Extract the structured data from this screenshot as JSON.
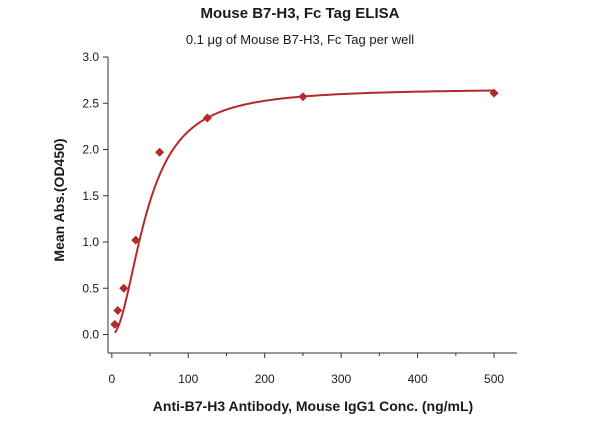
{
  "chart_data": {
    "type": "scatter",
    "title": "Mouse B7-H3, Fc Tag ELISA",
    "subtitle": "0.1 μg of Mouse B7-H3, Fc Tag per well",
    "xlabel": "Anti-B7-H3 Antibody, Mouse IgG1 Conc. (ng/mL)",
    "ylabel": "Mean Abs.(OD450)",
    "xlim": [
      -5,
      530
    ],
    "ylim": [
      -0.2,
      3.0
    ],
    "xticks": [
      0,
      100,
      200,
      300,
      400,
      500
    ],
    "yticks": [
      0.0,
      0.5,
      1.0,
      1.5,
      2.0,
      2.5,
      3.0
    ],
    "xtick_labels": [
      "0",
      "100",
      "200",
      "300",
      "400",
      "500"
    ],
    "ytick_labels": [
      "0.0",
      "0.5",
      "1.0",
      "1.5",
      "2.0",
      "2.5",
      "3.0"
    ],
    "grid": false,
    "color": "#b22a2a",
    "series": [
      {
        "marker": "diamond",
        "x": [
          3.9,
          7.8,
          15.6,
          31.3,
          62.5,
          125,
          250,
          500
        ],
        "y": [
          0.11,
          0.26,
          0.5,
          1.02,
          1.97,
          2.34,
          2.57,
          2.61
        ]
      }
    ],
    "fit_curve": {
      "model": "4PL",
      "bottom": 0.0,
      "top": 2.66,
      "ec50": 46,
      "hill": 2.0
    }
  }
}
